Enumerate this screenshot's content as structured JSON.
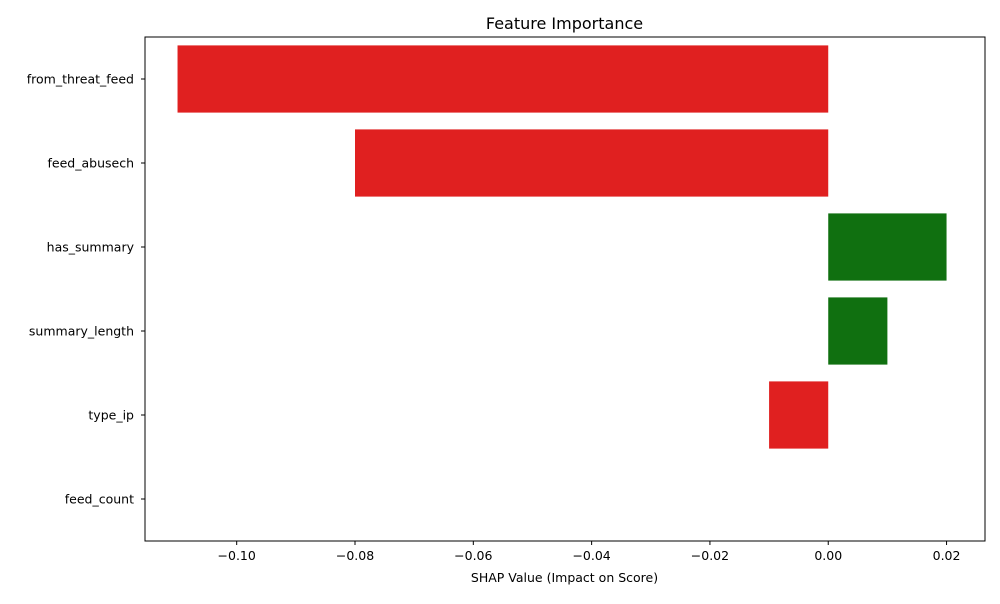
{
  "chart_data": {
    "type": "bar",
    "orientation": "horizontal",
    "title": "Feature Importance",
    "xlabel": "SHAP Value (Impact on Score)",
    "ylabel": "",
    "categories": [
      "from_threat_feed",
      "feed_abusech",
      "has_summary",
      "summary_length",
      "type_ip",
      "feed_count"
    ],
    "values": [
      -0.11,
      -0.08,
      0.02,
      0.01,
      -0.01,
      0.0
    ],
    "xlim": [
      -0.1155,
      0.0265
    ],
    "xticks": [
      -0.1,
      -0.08,
      -0.06,
      -0.04,
      -0.02,
      0.0,
      0.02
    ],
    "xtick_labels": [
      "−0.10",
      "−0.08",
      "−0.06",
      "−0.04",
      "−0.02",
      "0.00",
      "0.02"
    ],
    "grid": false,
    "colors": {
      "positive": "#107010",
      "negative": "#e02020",
      "axes": "#000000"
    }
  }
}
